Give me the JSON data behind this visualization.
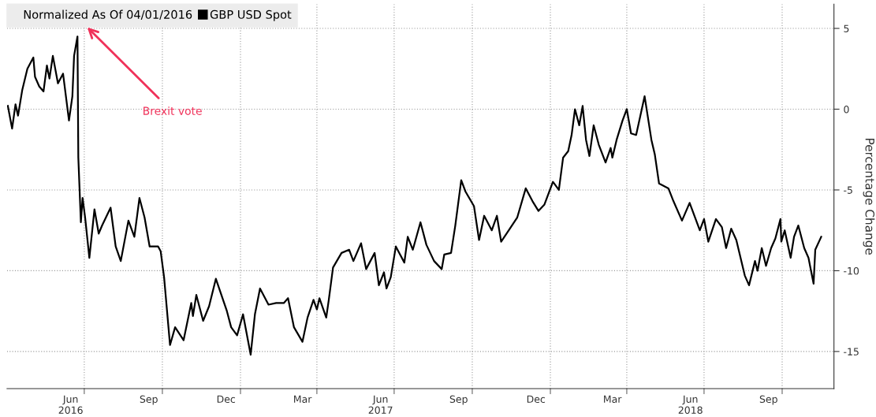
{
  "chart_data": {
    "type": "line",
    "ylabel": "Percentage Change",
    "legend_title": "Normalized As Of 04/01/2016",
    "legend": "top left",
    "grid": true,
    "xlim": [
      "2016-04-01",
      "2018-12-01"
    ],
    "ylim": [
      -17.3,
      6.5
    ],
    "yticks": [
      5,
      0,
      -5,
      -10,
      -15
    ],
    "xticks": [
      {
        "value": "2016-06-15",
        "label": "Jun\n2016"
      },
      {
        "value": "2016-09-15",
        "label": "Sep"
      },
      {
        "value": "2016-12-15",
        "label": "Dec"
      },
      {
        "value": "2017-03-15",
        "label": "Mar"
      },
      {
        "value": "2017-06-15",
        "label": "Jun\n2017"
      },
      {
        "value": "2017-09-15",
        "label": "Sep"
      },
      {
        "value": "2017-12-15",
        "label": "Dec"
      },
      {
        "value": "2018-03-15",
        "label": "Mar"
      },
      {
        "value": "2018-06-15",
        "label": "Jun\n2018"
      },
      {
        "value": "2018-09-15",
        "label": "Sep"
      },
      {
        "value": "2016-07-01",
        "label": null
      },
      {
        "value": "2016-10-01",
        "label": null
      },
      {
        "value": "2017-01-01",
        "label": null
      },
      {
        "value": "2017-04-01",
        "label": null
      },
      {
        "value": "2017-07-01",
        "label": null
      },
      {
        "value": "2017-10-01",
        "label": null
      },
      {
        "value": "2018-01-01",
        "label": null
      },
      {
        "value": "2018-04-01",
        "label": null
      },
      {
        "value": "2018-07-01",
        "label": null
      },
      {
        "value": "2018-10-01",
        "label": null
      }
    ],
    "annotations": [
      "Brexit vote"
    ],
    "x": [
      "2016-04-02",
      "2016-04-07",
      "2016-04-11",
      "2016-04-14",
      "2016-04-19",
      "2016-04-25",
      "2016-05-02",
      "2016-05-04",
      "2016-05-09",
      "2016-05-14",
      "2016-05-18",
      "2016-05-21",
      "2016-05-25",
      "2016-05-31",
      "2016-06-06",
      "2016-06-13",
      "2016-06-17",
      "2016-06-19",
      "2016-06-23",
      "2016-06-24",
      "2016-06-27",
      "2016-06-29",
      "2016-07-02",
      "2016-07-07",
      "2016-07-13",
      "2016-07-18",
      "2016-07-22",
      "2016-08-01",
      "2016-08-07",
      "2016-08-13",
      "2016-08-22",
      "2016-08-29",
      "2016-09-04",
      "2016-09-10",
      "2016-09-16",
      "2016-09-26",
      "2016-09-29",
      "2016-10-03",
      "2016-10-10",
      "2016-10-16",
      "2016-10-26",
      "2016-11-04",
      "2016-11-06",
      "2016-11-10",
      "2016-11-18",
      "2016-11-25",
      "2016-12-03",
      "2016-12-16",
      "2016-12-21",
      "2016-12-28",
      "2017-01-04",
      "2017-01-13",
      "2017-01-18",
      "2017-01-24",
      "2017-02-03",
      "2017-02-12",
      "2017-02-21",
      "2017-02-26",
      "2017-03-05",
      "2017-03-15",
      "2017-03-21",
      "2017-03-28",
      "2017-04-01",
      "2017-04-04",
      "2017-04-12",
      "2017-04-15",
      "2017-04-20",
      "2017-04-30",
      "2017-05-09",
      "2017-05-14",
      "2017-05-23",
      "2017-05-29",
      "2017-06-08",
      "2017-06-13",
      "2017-06-19",
      "2017-06-22",
      "2017-06-27",
      "2017-07-03",
      "2017-07-13",
      "2017-07-17",
      "2017-07-23",
      "2017-08-01",
      "2017-08-08",
      "2017-08-17",
      "2017-08-26",
      "2017-08-29",
      "2017-09-06",
      "2017-09-11",
      "2017-09-18",
      "2017-09-23",
      "2017-10-03",
      "2017-10-09",
      "2017-10-15",
      "2017-10-24",
      "2017-10-30",
      "2017-11-04",
      "2017-11-13",
      "2017-11-23",
      "2017-12-03",
      "2017-12-11",
      "2017-12-18",
      "2017-12-25",
      "2018-01-04",
      "2018-01-11",
      "2018-01-16",
      "2018-01-22",
      "2018-01-26",
      "2018-01-30",
      "2018-02-04",
      "2018-02-08",
      "2018-02-12",
      "2018-02-16",
      "2018-02-21",
      "2018-02-27",
      "2018-03-07",
      "2018-03-13",
      "2018-03-15",
      "2018-03-20",
      "2018-03-27",
      "2018-04-01",
      "2018-04-06",
      "2018-04-12",
      "2018-04-17",
      "2018-04-22",
      "2018-04-30",
      "2018-05-04",
      "2018-05-09",
      "2018-05-20",
      "2018-05-26",
      "2018-06-05",
      "2018-06-14",
      "2018-06-26",
      "2018-07-01",
      "2018-07-06",
      "2018-07-15",
      "2018-07-22",
      "2018-07-27",
      "2018-08-02",
      "2018-08-08",
      "2018-08-18",
      "2018-08-23",
      "2018-08-30",
      "2018-09-02",
      "2018-09-07",
      "2018-09-12",
      "2018-09-18",
      "2018-09-23",
      "2018-09-29",
      "2018-09-30",
      "2018-10-04",
      "2018-10-11",
      "2018-10-15",
      "2018-10-20",
      "2018-10-27",
      "2018-11-01",
      "2018-11-04",
      "2018-11-07",
      "2018-11-09",
      "2018-11-16"
    ],
    "series": [
      {
        "name": "GBP USD Spot",
        "color": "#000000",
        "values": [
          0.2,
          -1.2,
          0.3,
          -0.4,
          1.2,
          2.5,
          3.2,
          2.0,
          1.4,
          1.1,
          2.7,
          1.9,
          3.3,
          1.6,
          2.2,
          -0.7,
          0.8,
          3.3,
          4.5,
          -3.0,
          -7.0,
          -5.5,
          -6.7,
          -9.2,
          -6.2,
          -7.7,
          -7.2,
          -6.1,
          -8.5,
          -9.4,
          -6.9,
          -7.9,
          -5.5,
          -6.7,
          -8.5,
          -8.5,
          -8.8,
          -10.4,
          -14.6,
          -13.5,
          -14.3,
          -12.0,
          -12.8,
          -11.5,
          -13.1,
          -12.2,
          -10.5,
          -12.5,
          -13.5,
          -14.0,
          -12.7,
          -15.2,
          -12.7,
          -11.1,
          -12.1,
          -12.0,
          -12.0,
          -11.7,
          -13.5,
          -14.4,
          -12.9,
          -11.8,
          -12.4,
          -11.7,
          -12.9,
          -11.8,
          -9.8,
          -8.9,
          -8.7,
          -9.4,
          -8.3,
          -9.9,
          -8.9,
          -10.9,
          -10.1,
          -11.1,
          -10.4,
          -8.5,
          -9.5,
          -7.9,
          -8.7,
          -7.0,
          -8.4,
          -9.4,
          -9.9,
          -9.0,
          -8.9,
          -7.2,
          -4.4,
          -5.1,
          -6.0,
          -8.1,
          -6.6,
          -7.5,
          -6.6,
          -8.2,
          -7.5,
          -6.7,
          -4.9,
          -5.7,
          -6.3,
          -5.9,
          -4.5,
          -5.0,
          -3.0,
          -2.6,
          -1.6,
          0.0,
          -1.0,
          0.2,
          -1.9,
          -2.9,
          -1.0,
          -2.2,
          -3.3,
          -2.4,
          -3.0,
          -1.9,
          -0.7,
          0.0,
          -1.5,
          -1.6,
          -0.4,
          0.8,
          -1.9,
          -2.8,
          -4.6,
          -4.9,
          -5.7,
          -6.9,
          -5.8,
          -7.5,
          -6.8,
          -8.2,
          -6.8,
          -7.3,
          -8.6,
          -7.4,
          -8.1,
          -10.3,
          -10.9,
          -9.4,
          -10.0,
          -8.6,
          -9.7,
          -8.6,
          -8.0,
          -6.8,
          -8.2,
          -7.5,
          -9.2,
          -7.9,
          -7.2,
          -8.6,
          -9.2,
          -10.0,
          -10.8,
          -8.7,
          -7.9
        ]
      }
    ]
  }
}
